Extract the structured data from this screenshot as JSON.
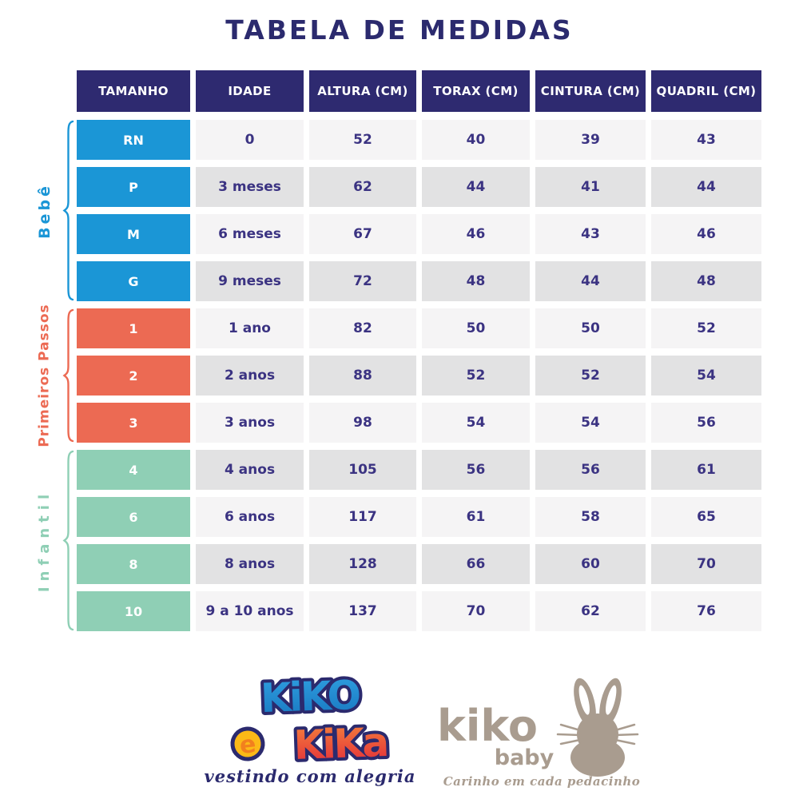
{
  "title": "TABELA DE MEDIDAS",
  "chart_data": {
    "type": "table",
    "title": "TABELA DE MEDIDAS",
    "columns": [
      "TAMANHO",
      "IDADE",
      "ALTURA (CM)",
      "TORAX (CM)",
      "CINTURA (CM)",
      "QUADRIL (CM)"
    ],
    "groups": [
      {
        "id": "bebe",
        "label": "Bebê",
        "color": "#1b96d6",
        "rows": [
          [
            "RN",
            "0",
            "52",
            "40",
            "39",
            "43"
          ],
          [
            "P",
            "3 meses",
            "62",
            "44",
            "41",
            "44"
          ],
          [
            "M",
            "6 meses",
            "67",
            "46",
            "43",
            "46"
          ],
          [
            "G",
            "9 meses",
            "72",
            "48",
            "44",
            "48"
          ]
        ]
      },
      {
        "id": "primeiros-passos",
        "label": "Primeiros Passos",
        "color": "#ec6a53",
        "rows": [
          [
            "1",
            "1 ano",
            "82",
            "50",
            "50",
            "52"
          ],
          [
            "2",
            "2 anos",
            "88",
            "52",
            "52",
            "54"
          ],
          [
            "3",
            "3 anos",
            "98",
            "54",
            "54",
            "56"
          ]
        ]
      },
      {
        "id": "infantil",
        "label": "Infantil",
        "color": "#8fcfb5",
        "rows": [
          [
            "4",
            "4 anos",
            "105",
            "56",
            "56",
            "61"
          ],
          [
            "6",
            "6 anos",
            "117",
            "61",
            "58",
            "65"
          ],
          [
            "8",
            "8 anos",
            "128",
            "66",
            "60",
            "70"
          ],
          [
            "10",
            "9 a 10 anos",
            "137",
            "70",
            "62",
            "76"
          ]
        ]
      }
    ]
  },
  "colors": {
    "title": "#2b2a6e",
    "header_bg": "#2e2a70",
    "header_text": "#ffffff",
    "cell_text": "#3b3382",
    "row_light": "#f5f4f5",
    "row_dark": "#e2e2e3",
    "bebe_blue": "#1b96d6",
    "primeiros_coral": "#ec6a53",
    "infantil_mint": "#8fcfb5"
  },
  "footer": {
    "kiko_e_kika": {
      "word1": "KiKO",
      "word_e": "e",
      "word2": "KiKa",
      "tagline": "vestindo com alegria",
      "colors": {
        "blue_top": "#2f9fe0",
        "blue_bottom": "#1877c0",
        "outline": "#2b2a6e",
        "yellow": "#fcb917",
        "orange_e": "#f2801e",
        "red_top": "#f5823c",
        "red_bottom": "#e22c39"
      }
    },
    "kiko_baby": {
      "name": "kiko",
      "sub": "baby",
      "tagline": "Carinho em cada pedacinho",
      "color": "#a99c8f",
      "icon": "bunny-icon"
    }
  }
}
